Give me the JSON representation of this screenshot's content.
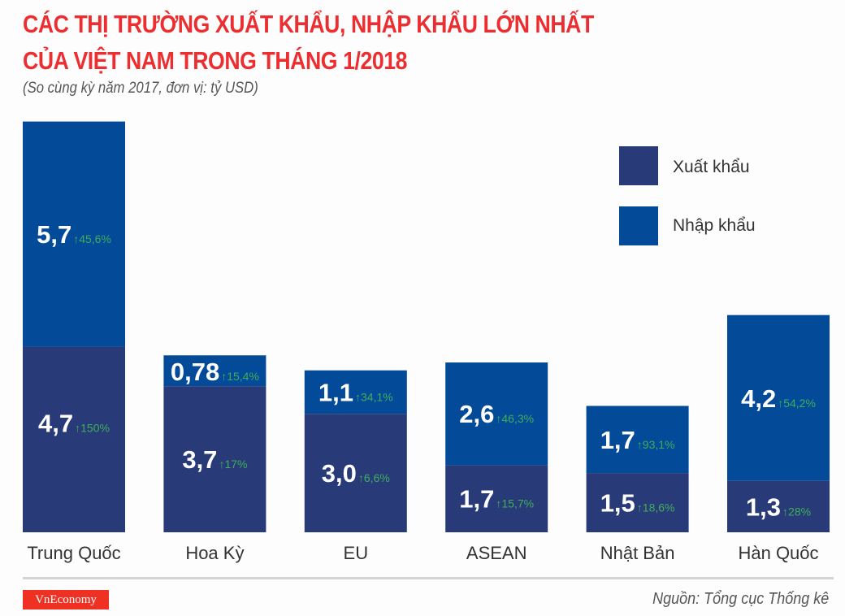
{
  "header": {
    "title_line1": "CÁC THỊ TRƯỜNG XUẤT KHẨU, NHẬP KHẨU LỚN NHẤT",
    "title_line2": "CỦA VIỆT NAM TRONG THÁNG 1/2018",
    "subtitle": "(So cùng kỳ năm 2017, đơn vị: tỷ USD)"
  },
  "footer": {
    "logo": "VnEconomy",
    "source": "Nguồn: Tổng cục Thống kê"
  },
  "colors": {
    "title": "#ec2e31",
    "export": "#283a78",
    "import": "#034a98",
    "growth": "#3fae5a"
  },
  "chart_data": {
    "type": "bar",
    "stacked": true,
    "title": "CÁC THỊ TRƯỜNG XUẤT KHẨU, NHẬP KHẨU LỚN NHẤT CỦA VIỆT NAM TRONG THÁNG 1/2018",
    "subtitle": "(So cùng kỳ năm 2017, đơn vị: tỷ USD)",
    "xlabel": "",
    "ylabel": "tỷ USD",
    "legend_position": "top-right",
    "categories": [
      "Trung Quốc",
      "Hoa Kỳ",
      "EU",
      "ASEAN",
      "Nhật Bản",
      "Hàn Quốc"
    ],
    "series": [
      {
        "name": "Xuất khẩu",
        "values": [
          4.7,
          3.7,
          3.0,
          1.7,
          1.5,
          1.3
        ],
        "labels": [
          "4,7",
          "3,7",
          "3,0",
          "1,7",
          "1,5",
          "1,3"
        ],
        "growth": [
          "150%",
          "17%",
          "6,6%",
          "15,7%",
          "18,6%",
          "28%"
        ]
      },
      {
        "name": "Nhập khẩu",
        "values": [
          5.7,
          0.78,
          1.1,
          2.6,
          1.7,
          4.2
        ],
        "labels": [
          "5,7",
          "0,78",
          "1,1",
          "2,6",
          "1,7",
          "4,2"
        ],
        "growth": [
          "45,6%",
          "15,4%",
          "34,1%",
          "46,3%",
          "93,1%",
          "54,2%"
        ]
      }
    ]
  }
}
